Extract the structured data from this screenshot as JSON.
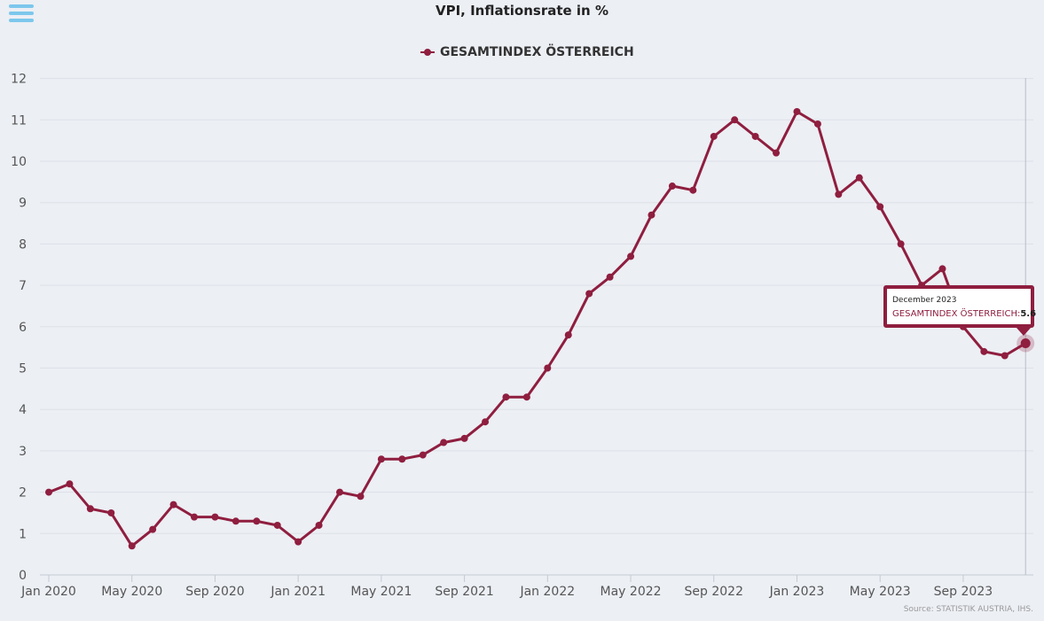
{
  "menu": {
    "icon": "hamburger-menu-icon"
  },
  "chart_data": {
    "type": "line",
    "title": "VPI, Inflationsrate in %",
    "xlabel": "",
    "ylabel": "",
    "ylim": [
      0,
      12
    ],
    "yticks": [
      "0",
      "1",
      "2",
      "3",
      "4",
      "5",
      "6",
      "7",
      "8",
      "9",
      "10",
      "11",
      "12"
    ],
    "xticks": [
      {
        "index": 0,
        "label": "Jan 2020"
      },
      {
        "index": 4,
        "label": "May 2020"
      },
      {
        "index": 8,
        "label": "Sep 2020"
      },
      {
        "index": 12,
        "label": "Jan 2021"
      },
      {
        "index": 16,
        "label": "May 2021"
      },
      {
        "index": 20,
        "label": "Sep 2021"
      },
      {
        "index": 24,
        "label": "Jan 2022"
      },
      {
        "index": 28,
        "label": "May 2022"
      },
      {
        "index": 32,
        "label": "Sep 2022"
      },
      {
        "index": 36,
        "label": "Jan 2023"
      },
      {
        "index": 40,
        "label": "May 2023"
      },
      {
        "index": 44,
        "label": "Sep 2023"
      }
    ],
    "x": [
      "2020-01",
      "2020-02",
      "2020-03",
      "2020-04",
      "2020-05",
      "2020-06",
      "2020-07",
      "2020-08",
      "2020-09",
      "2020-10",
      "2020-11",
      "2020-12",
      "2021-01",
      "2021-02",
      "2021-03",
      "2021-04",
      "2021-05",
      "2021-06",
      "2021-07",
      "2021-08",
      "2021-09",
      "2021-10",
      "2021-11",
      "2021-12",
      "2022-01",
      "2022-02",
      "2022-03",
      "2022-04",
      "2022-05",
      "2022-06",
      "2022-07",
      "2022-08",
      "2022-09",
      "2022-10",
      "2022-11",
      "2022-12",
      "2023-01",
      "2023-02",
      "2023-03",
      "2023-04",
      "2023-05",
      "2023-06",
      "2023-07",
      "2023-08",
      "2023-09",
      "2023-10",
      "2023-11",
      "2023-12"
    ],
    "series": [
      {
        "name": "GESAMTINDEX ÖSTERREICH",
        "color": "#8f1e3f",
        "values": [
          2.0,
          2.2,
          1.6,
          1.5,
          0.7,
          1.1,
          1.7,
          1.4,
          1.4,
          1.3,
          1.3,
          1.2,
          0.8,
          1.2,
          2.0,
          1.9,
          2.8,
          2.8,
          2.9,
          3.2,
          3.3,
          3.7,
          4.3,
          4.3,
          5.0,
          5.8,
          6.8,
          7.2,
          7.7,
          8.7,
          9.4,
          9.3,
          10.6,
          11.0,
          10.6,
          10.2,
          11.2,
          10.9,
          9.2,
          9.6,
          8.9,
          8.0,
          7.0,
          7.4,
          6.0,
          5.4,
          5.3,
          5.6
        ]
      }
    ],
    "grid": true,
    "legend_position": "top-center"
  },
  "tooltip": {
    "date": "December 2023",
    "series": "GESAMTINDEX ÖSTERREICH:",
    "value": "5.6"
  },
  "source": "Source: STATISTIK AUSTRIA, IHS."
}
